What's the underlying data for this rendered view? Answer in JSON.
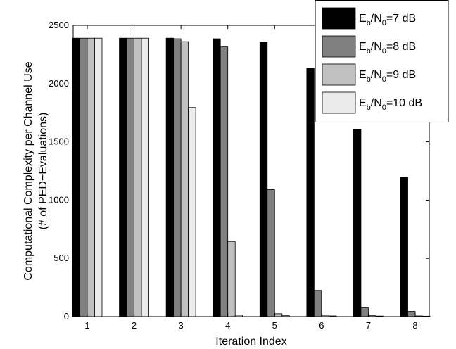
{
  "chart_data": {
    "type": "bar",
    "xlabel": "Iteration Index",
    "ylabel_line1": "Computational Complexity per Channel Use",
    "ylabel_line2": "(# of PED−Evaluations)",
    "categories": [
      "1",
      "2",
      "3",
      "4",
      "5",
      "6",
      "7",
      "8"
    ],
    "ylim": [
      0,
      2500
    ],
    "yticks": [
      0,
      500,
      1000,
      1500,
      2000,
      2500
    ],
    "yticklabels": [
      "0",
      "500",
      "1000",
      "1500",
      "2000",
      "2500"
    ],
    "grid": false,
    "legend_position": "top-right",
    "series": [
      {
        "name_main": "E",
        "name_sub1": "b",
        "name_mid": "/N",
        "name_sub2": "0",
        "name_tail": "=7 dB",
        "color": "#000000",
        "values": [
          2390,
          2390,
          2390,
          2385,
          2355,
          2130,
          1605,
          1195
        ]
      },
      {
        "name_main": "E",
        "name_sub1": "b",
        "name_mid": "/N",
        "name_sub2": "0",
        "name_tail": "=8 dB",
        "color": "#808080",
        "values": [
          2390,
          2390,
          2385,
          2315,
          1090,
          225,
          75,
          45
        ]
      },
      {
        "name_main": "E",
        "name_sub1": "b",
        "name_mid": "/N",
        "name_sub2": "0",
        "name_tail": "=9 dB",
        "color": "#c0c0c0",
        "values": [
          2390,
          2390,
          2360,
          645,
          25,
          12,
          8,
          6
        ]
      },
      {
        "name_main": "E",
        "name_sub1": "b",
        "name_mid": "/N",
        "name_sub2": "0",
        "name_tail": "=10 dB",
        "color": "#ebebeb",
        "values": [
          2390,
          2390,
          1795,
          12,
          8,
          6,
          5,
          4
        ]
      }
    ]
  }
}
